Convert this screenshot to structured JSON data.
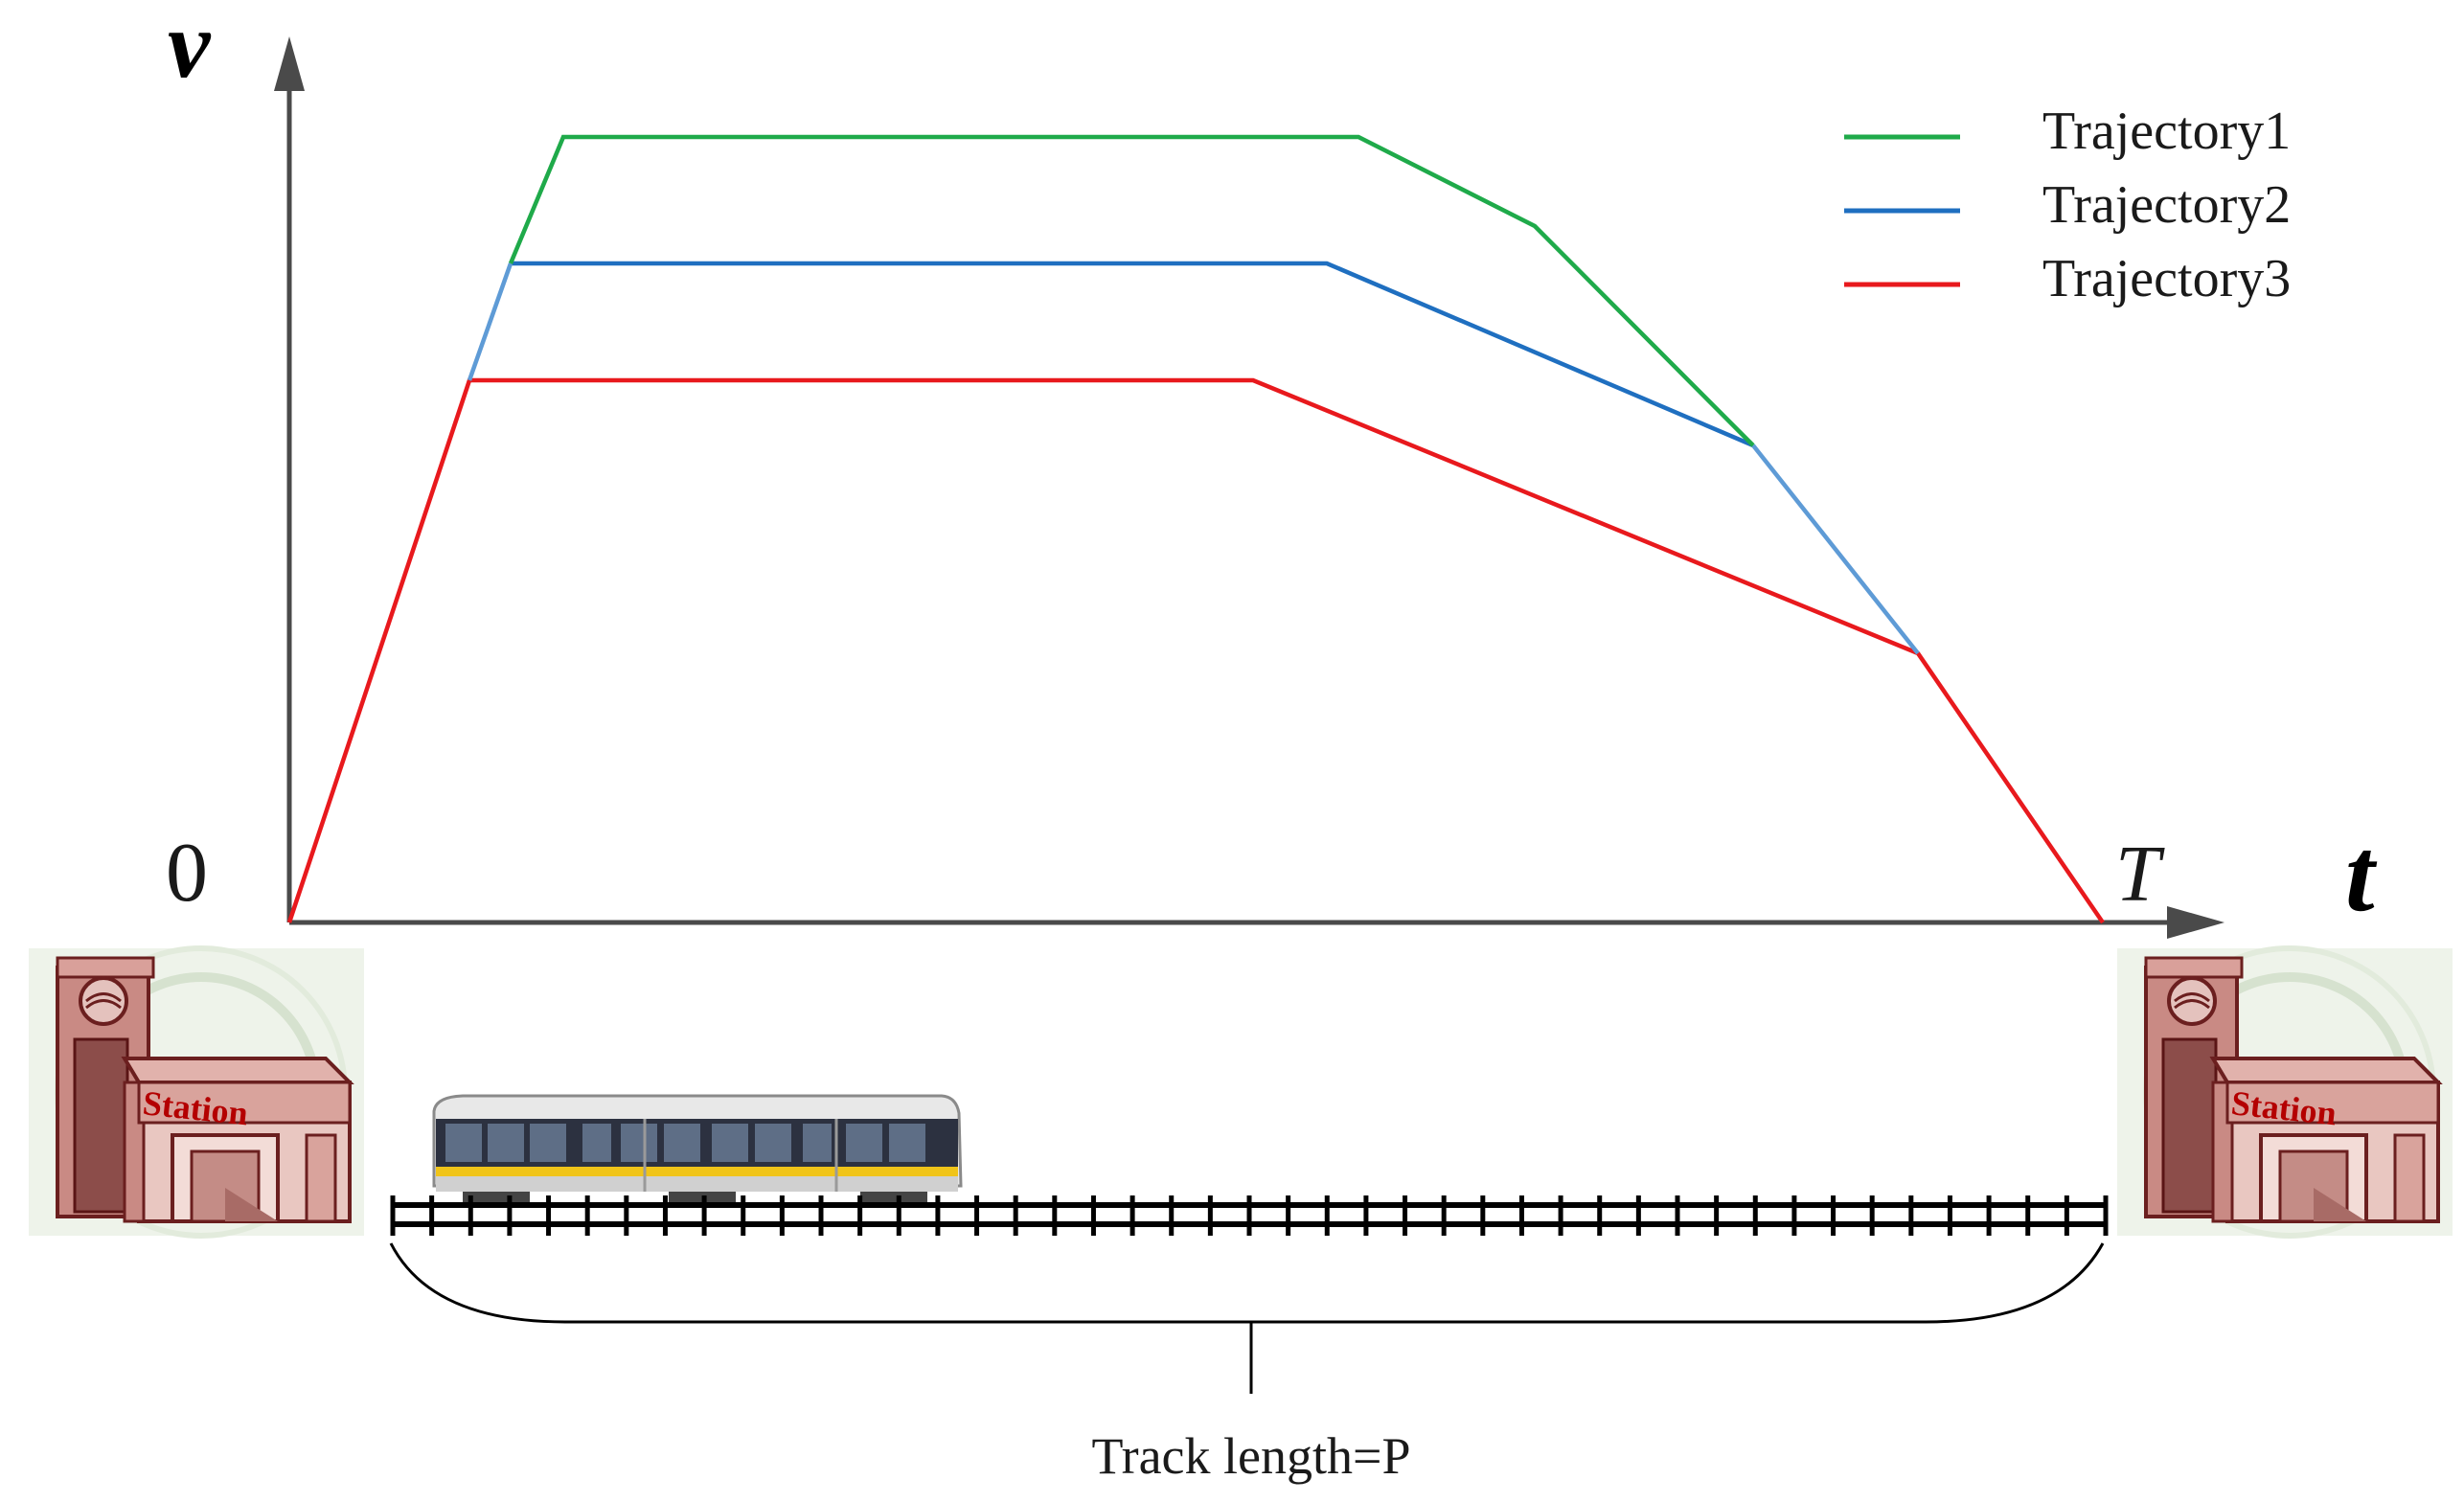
{
  "axes": {
    "y_letter": "v",
    "x_letter": "t",
    "origin_label": "0",
    "end_label": "T"
  },
  "legend": {
    "items": [
      {
        "label": "Trajectory1",
        "color": "#1faa4a"
      },
      {
        "label": "Trajectory2",
        "color": "#1f6fc0"
      },
      {
        "label": "Trajectory3",
        "color": "#e8191d"
      }
    ]
  },
  "stations": {
    "left_label": "Station",
    "right_label": "Station"
  },
  "track": {
    "caption": "Track length=P",
    "tie_count": 45
  },
  "icons": [
    "station-building-icon",
    "train-icon",
    "railway-track-icon"
  ]
}
